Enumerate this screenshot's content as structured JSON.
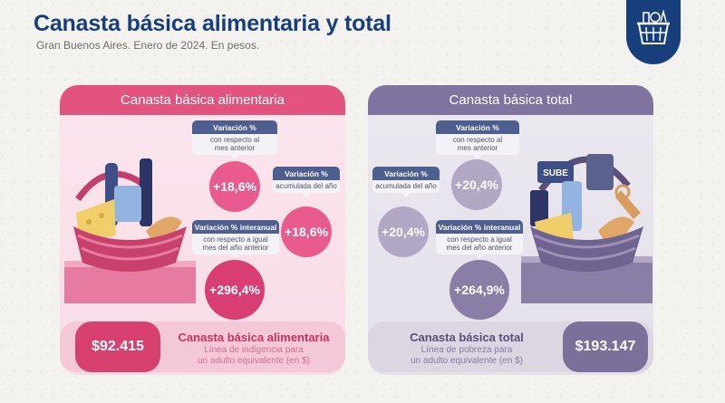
{
  "header": {
    "title": "Canasta básica alimentaria y total",
    "subtitle": "Gran Buenos Aires. Enero de 2024. En pesos.",
    "logo_icon": "shopping-basket-icon"
  },
  "colors": {
    "title_blue": "#173f7c",
    "pink": "#e2537f",
    "purple": "#8073a0",
    "label_head": "#4e5f8f"
  },
  "left_panel": {
    "header": "Canasta básica alimentaria",
    "monthly": {
      "head": "Variación %",
      "line1": "con respecto al",
      "line2": "mes anterior",
      "value": "+18,6%"
    },
    "ytd": {
      "head": "Variación %",
      "line1": "acumulada del año",
      "value": "+18,6%"
    },
    "yoy": {
      "head": "Variación % interanual",
      "line1": "con respecto a igual",
      "line2": "mes del año anterior",
      "value": "+296,4%"
    },
    "price": "$92.415",
    "price_title": "Canasta básica alimentaria",
    "price_line1": "Línea de indigencia para",
    "price_line2": "un adulto equivalente (en $)"
  },
  "right_panel": {
    "header": "Canasta básica total",
    "ytd": {
      "head": "Variación %",
      "line1": "acumulada del año",
      "value": "+20,4%"
    },
    "monthly": {
      "head": "Variación %",
      "line1": "con respecto al",
      "line2": "mes anterior",
      "value": "+20,4%"
    },
    "yoy": {
      "head": "Variación % interanual",
      "line1": "con respecto a igual",
      "line2": "mes del año anterior",
      "value": "+264,9%"
    },
    "price": "$193.147",
    "price_title": "Canasta básica total",
    "price_line1": "Línea de pobreza para",
    "price_line2": "un adulto equivalente (en $)",
    "card_text": "SUBE"
  }
}
